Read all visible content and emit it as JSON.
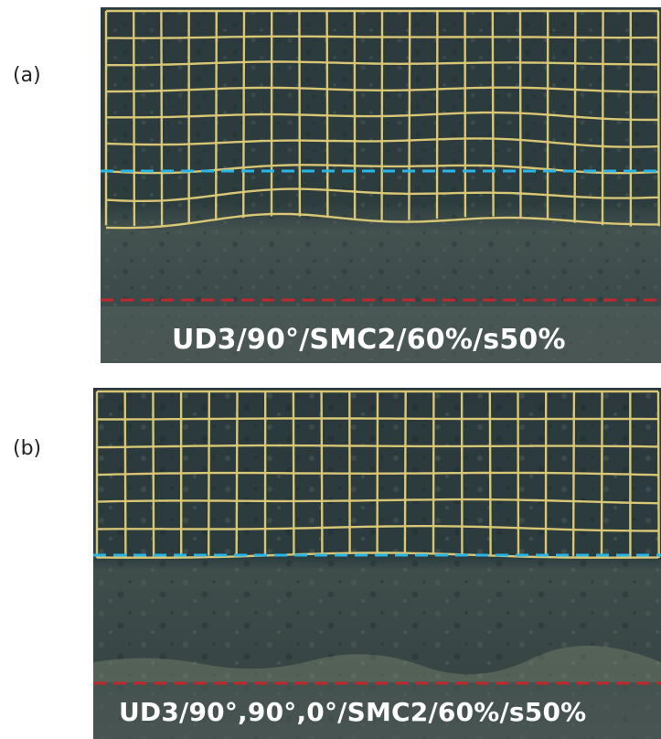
{
  "panels": [
    {
      "label": "(a)",
      "caption": "UD3/90°/SMC2/60%/s50%"
    },
    {
      "label": "(b)",
      "caption": "UD3/90°,90°,0°/SMC2/60%/s50%"
    }
  ],
  "colors": {
    "grid_lines": "#e8d27a",
    "blue_dashed_line": "#29b6e6",
    "red_dashed_line": "#c0282d",
    "specimen_dark": "#2a3a3c",
    "specimen_light": "#4b5a58",
    "caption_text": "#ffffff"
  }
}
